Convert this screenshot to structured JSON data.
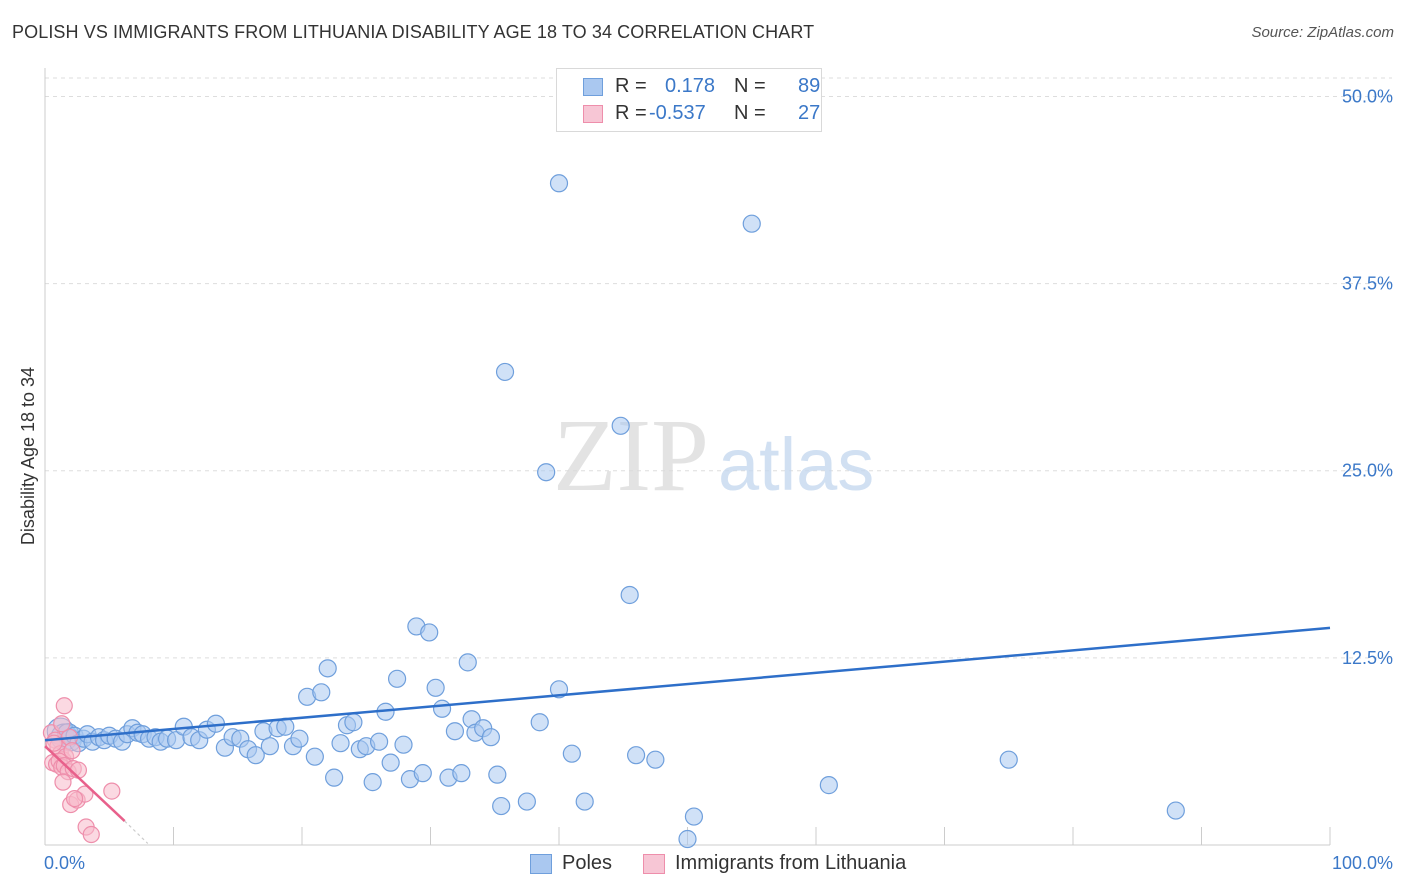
{
  "header": {
    "title": "POLISH VS IMMIGRANTS FROM LITHUANIA DISABILITY AGE 18 TO 34 CORRELATION CHART",
    "source": "Source: ZipAtlas.com"
  },
  "legend": {
    "r_label": "R =",
    "n_label": "N =",
    "rows": [
      {
        "r": "0.178",
        "n": "89"
      },
      {
        "r": "-0.537",
        "n": "27"
      }
    ]
  },
  "watermark": {
    "zip": "ZIP",
    "atlas": "atlas"
  },
  "colors": {
    "poles_fill": "#aac8f0",
    "poles_stroke": "#6f9fdc",
    "poles_line": "#2e6fc9",
    "lith_fill": "#f7b9cb",
    "lith_stroke": "#ee8eab",
    "lith_line": "#e8608b",
    "tick_text": "#3b78c8",
    "grid": "#dddddd"
  },
  "chart_data": {
    "type": "scatter",
    "title": "POLISH VS IMMIGRANTS FROM LITHUANIA DISABILITY AGE 18 TO 34 CORRELATION CHART",
    "xlabel": "",
    "ylabel": "Disability Age 18 to 34",
    "xlim": [
      0,
      100
    ],
    "ylim": [
      0,
      51.5
    ],
    "x_tick_labels": [
      "0.0%",
      "100.0%"
    ],
    "y_ticks": [
      12.5,
      25.0,
      37.5,
      50.0
    ],
    "y_tick_labels": [
      "12.5%",
      "25.0%",
      "37.5%",
      "50.0%"
    ],
    "grid": true,
    "legend_position": "bottom",
    "series": [
      {
        "name": "Poles",
        "r": 0.178,
        "n": 89,
        "trend": {
          "x": [
            0,
            100
          ],
          "y": [
            7.0,
            14.5
          ]
        },
        "points": [
          [
            1.2,
            7.6,
            3
          ],
          [
            1.5,
            7.2,
            3
          ],
          [
            1.8,
            7.4,
            2
          ],
          [
            2.0,
            7.0,
            2
          ],
          [
            2.3,
            7.3,
            1
          ],
          [
            2.6,
            6.8,
            1
          ],
          [
            3.0,
            7.1,
            1
          ],
          [
            3.3,
            7.4,
            1
          ],
          [
            3.7,
            6.9,
            1
          ],
          [
            4.2,
            7.2,
            1
          ],
          [
            4.6,
            7.0,
            1
          ],
          [
            5.0,
            7.3,
            1
          ],
          [
            5.5,
            7.1,
            1
          ],
          [
            6.0,
            6.9,
            1
          ],
          [
            6.4,
            7.4,
            1
          ],
          [
            6.8,
            7.8,
            1
          ],
          [
            7.2,
            7.5,
            1
          ],
          [
            7.6,
            7.4,
            1
          ],
          [
            8.1,
            7.1,
            1
          ],
          [
            8.6,
            7.2,
            1
          ],
          [
            9.0,
            6.9,
            1
          ],
          [
            9.5,
            7.1,
            1
          ],
          [
            10.2,
            7.0,
            1
          ],
          [
            10.8,
            7.9,
            1
          ],
          [
            11.4,
            7.2,
            1
          ],
          [
            12.0,
            7.0,
            1
          ],
          [
            12.6,
            7.7,
            1
          ],
          [
            13.3,
            8.1,
            1
          ],
          [
            14.0,
            6.5,
            1
          ],
          [
            14.6,
            7.2,
            1
          ],
          [
            15.2,
            7.1,
            1
          ],
          [
            15.8,
            6.4,
            1
          ],
          [
            16.4,
            6.0,
            1
          ],
          [
            17.0,
            7.6,
            1
          ],
          [
            17.5,
            6.6,
            1
          ],
          [
            18.1,
            7.8,
            1
          ],
          [
            18.7,
            7.9,
            1
          ],
          [
            19.3,
            6.6,
            1
          ],
          [
            19.8,
            7.1,
            1
          ],
          [
            20.4,
            9.9,
            1
          ],
          [
            21.0,
            5.9,
            1
          ],
          [
            21.5,
            10.2,
            1
          ],
          [
            22.0,
            11.8,
            1
          ],
          [
            22.5,
            4.5,
            1
          ],
          [
            23.0,
            6.8,
            1
          ],
          [
            23.5,
            8.0,
            1
          ],
          [
            24.0,
            8.2,
            1
          ],
          [
            24.5,
            6.4,
            1
          ],
          [
            25.0,
            6.6,
            1
          ],
          [
            25.5,
            4.2,
            1
          ],
          [
            26.0,
            6.9,
            1
          ],
          [
            26.5,
            8.9,
            1
          ],
          [
            26.9,
            5.5,
            1
          ],
          [
            27.4,
            11.1,
            1
          ],
          [
            27.9,
            6.7,
            1
          ],
          [
            28.4,
            4.4,
            1
          ],
          [
            28.9,
            14.6,
            1
          ],
          [
            29.4,
            4.8,
            1
          ],
          [
            29.9,
            14.2,
            1
          ],
          [
            30.4,
            10.5,
            1
          ],
          [
            30.9,
            9.1,
            1
          ],
          [
            31.4,
            4.5,
            1
          ],
          [
            31.9,
            7.6,
            1
          ],
          [
            32.4,
            4.8,
            1
          ],
          [
            32.9,
            12.2,
            1
          ],
          [
            33.2,
            8.4,
            1
          ],
          [
            33.5,
            7.5,
            1
          ],
          [
            34.1,
            7.8,
            1
          ],
          [
            34.7,
            7.2,
            1
          ],
          [
            35.2,
            4.7,
            1
          ],
          [
            35.5,
            2.6,
            1
          ],
          [
            37.5,
            2.9,
            1
          ],
          [
            38.5,
            8.2,
            1
          ],
          [
            40.0,
            10.4,
            1
          ],
          [
            41.0,
            6.1,
            1
          ],
          [
            42.0,
            2.9,
            1
          ],
          [
            35.8,
            31.6,
            1
          ],
          [
            39.0,
            24.9,
            1
          ],
          [
            40.0,
            44.2,
            1
          ],
          [
            44.8,
            28.0,
            1
          ],
          [
            45.5,
            16.7,
            1
          ],
          [
            46.0,
            6.0,
            1
          ],
          [
            47.5,
            5.7,
            1
          ],
          [
            50.0,
            0.4,
            1
          ],
          [
            50.5,
            1.9,
            1
          ],
          [
            55.0,
            41.5,
            1
          ],
          [
            61.0,
            4.0,
            1
          ],
          [
            75.0,
            5.7,
            1
          ],
          [
            88.0,
            2.3,
            1
          ]
        ]
      },
      {
        "name": "Immigrants from Lithuania",
        "r": -0.537,
        "n": 27,
        "trend": {
          "x": [
            0,
            6.2
          ],
          "y": [
            6.6,
            1.6
          ]
        },
        "trend_ext": {
          "x": [
            6.2,
            8.0
          ],
          "y": [
            1.6,
            0.1
          ]
        },
        "points": [
          [
            0.5,
            7.5,
            1
          ],
          [
            0.8,
            7.0,
            1
          ],
          [
            1.0,
            6.6,
            1
          ],
          [
            1.2,
            6.1,
            1
          ],
          [
            1.4,
            5.7,
            1
          ],
          [
            1.6,
            5.9,
            1
          ],
          [
            1.9,
            7.2,
            1
          ],
          [
            2.1,
            6.3,
            1
          ],
          [
            1.3,
            8.1,
            1
          ],
          [
            0.6,
            5.5,
            1
          ],
          [
            0.9,
            5.4,
            1
          ],
          [
            1.1,
            5.6,
            1
          ],
          [
            1.3,
            5.2,
            1
          ],
          [
            1.5,
            5.3,
            1
          ],
          [
            1.8,
            4.9,
            1
          ],
          [
            2.2,
            5.1,
            1
          ],
          [
            2.6,
            5.0,
            1
          ],
          [
            1.4,
            4.2,
            1
          ],
          [
            2.0,
            2.7,
            1
          ],
          [
            2.5,
            3.0,
            1
          ],
          [
            3.1,
            3.4,
            1
          ],
          [
            1.5,
            9.3,
            1
          ],
          [
            3.2,
            1.2,
            1
          ],
          [
            3.6,
            0.7,
            1
          ],
          [
            5.2,
            3.6,
            1
          ],
          [
            0.7,
            6.8,
            1
          ],
          [
            2.3,
            3.1,
            1
          ]
        ]
      }
    ]
  }
}
